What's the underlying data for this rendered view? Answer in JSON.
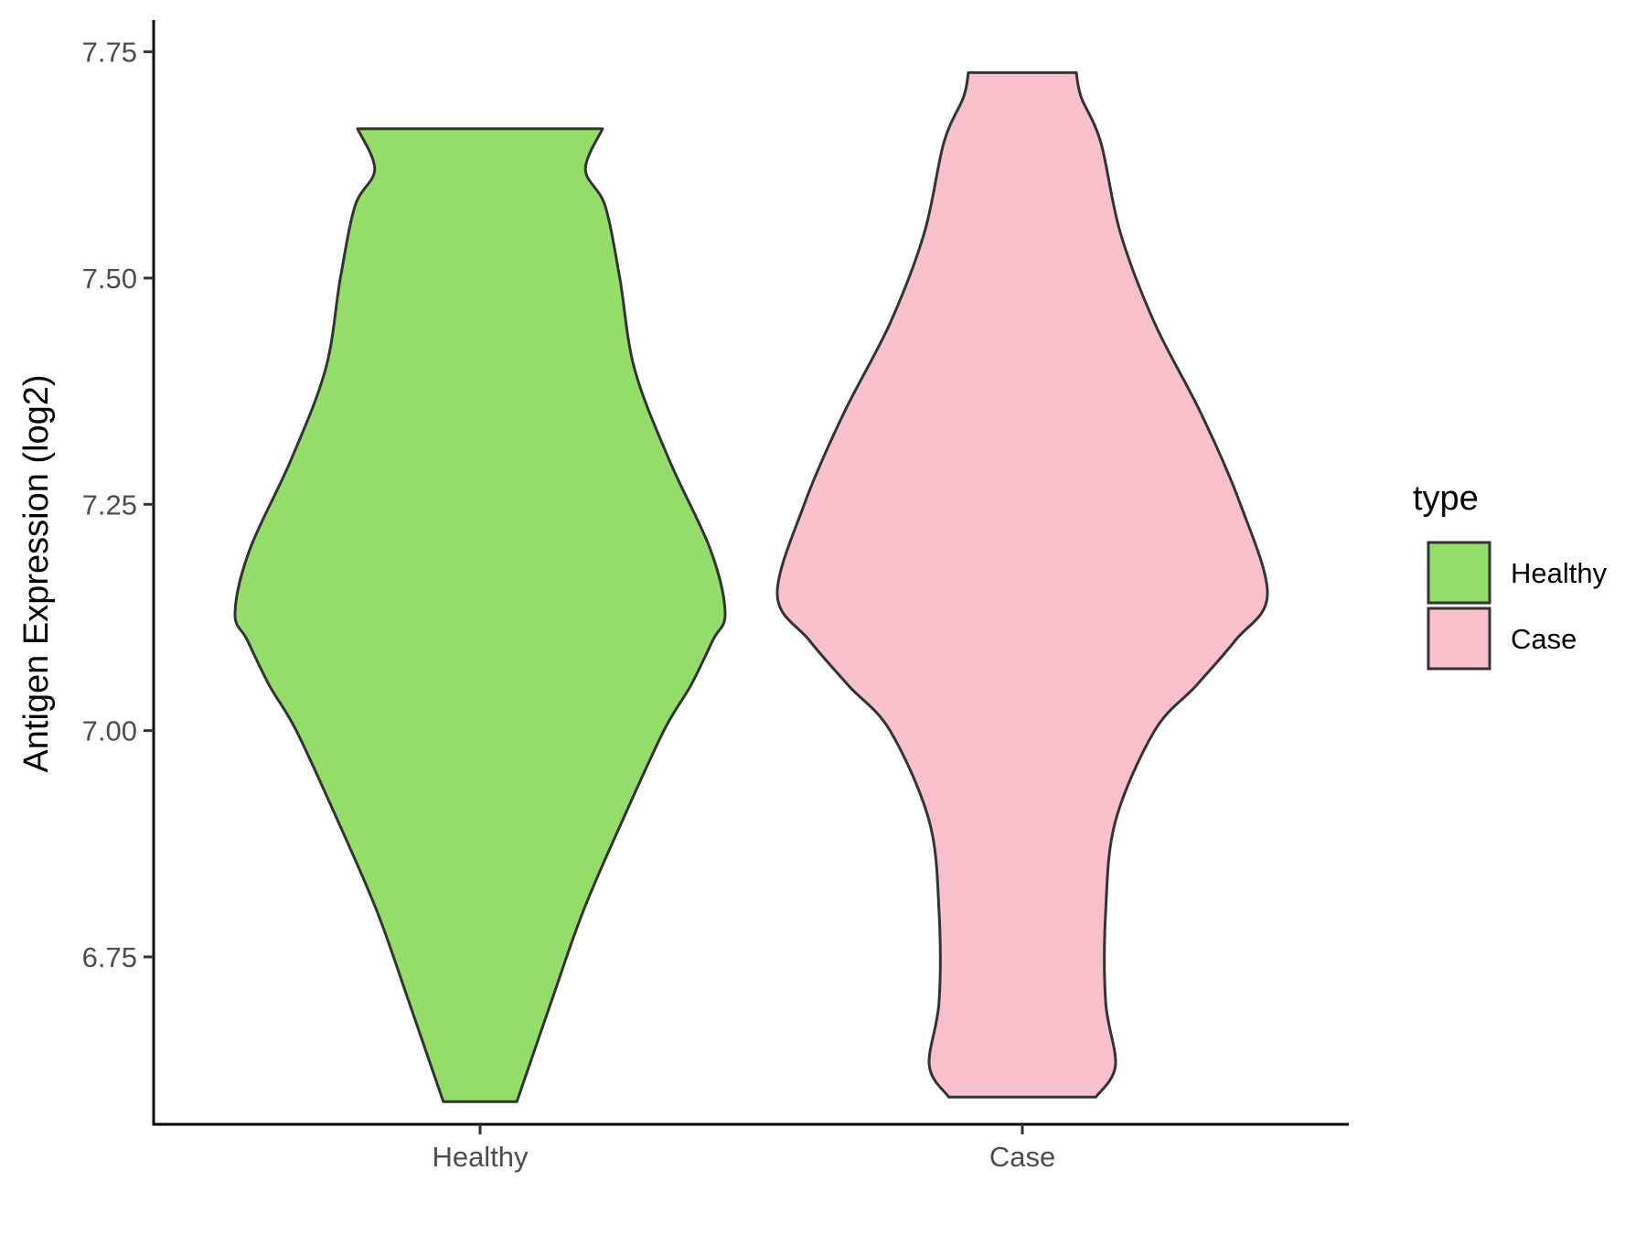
{
  "chart_data": {
    "type": "violin",
    "title": "",
    "xlabel": "",
    "ylabel": "Antigen Expression (log2)",
    "ylim": [
      6.565,
      7.785
    ],
    "yticks": [
      "6.75",
      "7.00",
      "7.25",
      "7.50",
      "7.75"
    ],
    "categories": [
      "Healthy",
      "Case"
    ],
    "grid": false,
    "legend": {
      "title": "type",
      "position": "right",
      "entries": [
        {
          "label": "Healthy",
          "color": "#95DD6B"
        },
        {
          "label": "Case",
          "color": "#F8C0CB"
        }
      ]
    },
    "series": [
      {
        "category": "Healthy",
        "color": "#95DD6B",
        "min": 6.59,
        "max": 7.665,
        "density_profile": [
          [
            6.59,
            0.15
          ],
          [
            6.7,
            0.29
          ],
          [
            6.8,
            0.42
          ],
          [
            6.9,
            0.58
          ],
          [
            7.0,
            0.75
          ],
          [
            7.05,
            0.86
          ],
          [
            7.1,
            0.95
          ],
          [
            7.13,
            1.0
          ],
          [
            7.2,
            0.94
          ],
          [
            7.3,
            0.77
          ],
          [
            7.4,
            0.63
          ],
          [
            7.5,
            0.57
          ],
          [
            7.58,
            0.51
          ],
          [
            7.62,
            0.43
          ],
          [
            7.665,
            0.5
          ]
        ]
      },
      {
        "category": "Case",
        "color": "#F8C0CB",
        "min": 6.595,
        "max": 7.727,
        "density_profile": [
          [
            6.595,
            0.3
          ],
          [
            6.63,
            0.38
          ],
          [
            6.7,
            0.34
          ],
          [
            6.8,
            0.34
          ],
          [
            6.9,
            0.38
          ],
          [
            7.0,
            0.54
          ],
          [
            7.05,
            0.71
          ],
          [
            7.1,
            0.87
          ],
          [
            7.15,
            1.0
          ],
          [
            7.25,
            0.89
          ],
          [
            7.35,
            0.73
          ],
          [
            7.45,
            0.54
          ],
          [
            7.55,
            0.4
          ],
          [
            7.65,
            0.32
          ],
          [
            7.7,
            0.24
          ],
          [
            7.727,
            0.22
          ]
        ]
      }
    ]
  }
}
